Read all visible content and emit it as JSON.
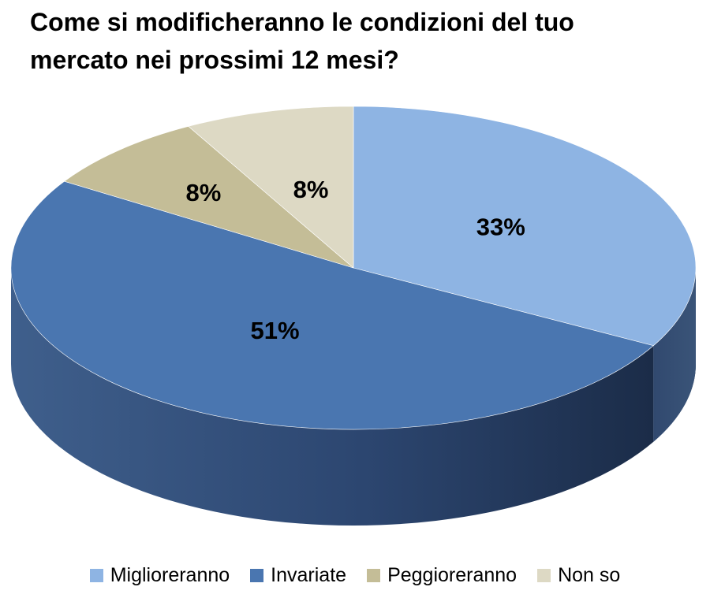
{
  "chart_data": {
    "type": "pie",
    "title": "Come si modificheranno le condizioni del tuo mercato nei prossimi 12 mesi?",
    "legend_position": "bottom",
    "style": "3d",
    "slices": [
      {
        "label": "Miglioreranno",
        "value": 33,
        "value_label": "33%",
        "color": "#8eb4e3"
      },
      {
        "label": "Invariate",
        "value": 51,
        "value_label": "51%",
        "color": "#4a76b0"
      },
      {
        "label": "Peggioreranno",
        "value": 8,
        "value_label": "8%",
        "color": "#c4bd97"
      },
      {
        "label": "Non so",
        "value": 8,
        "value_label": "8%",
        "color": "#ddd9c4"
      }
    ]
  }
}
